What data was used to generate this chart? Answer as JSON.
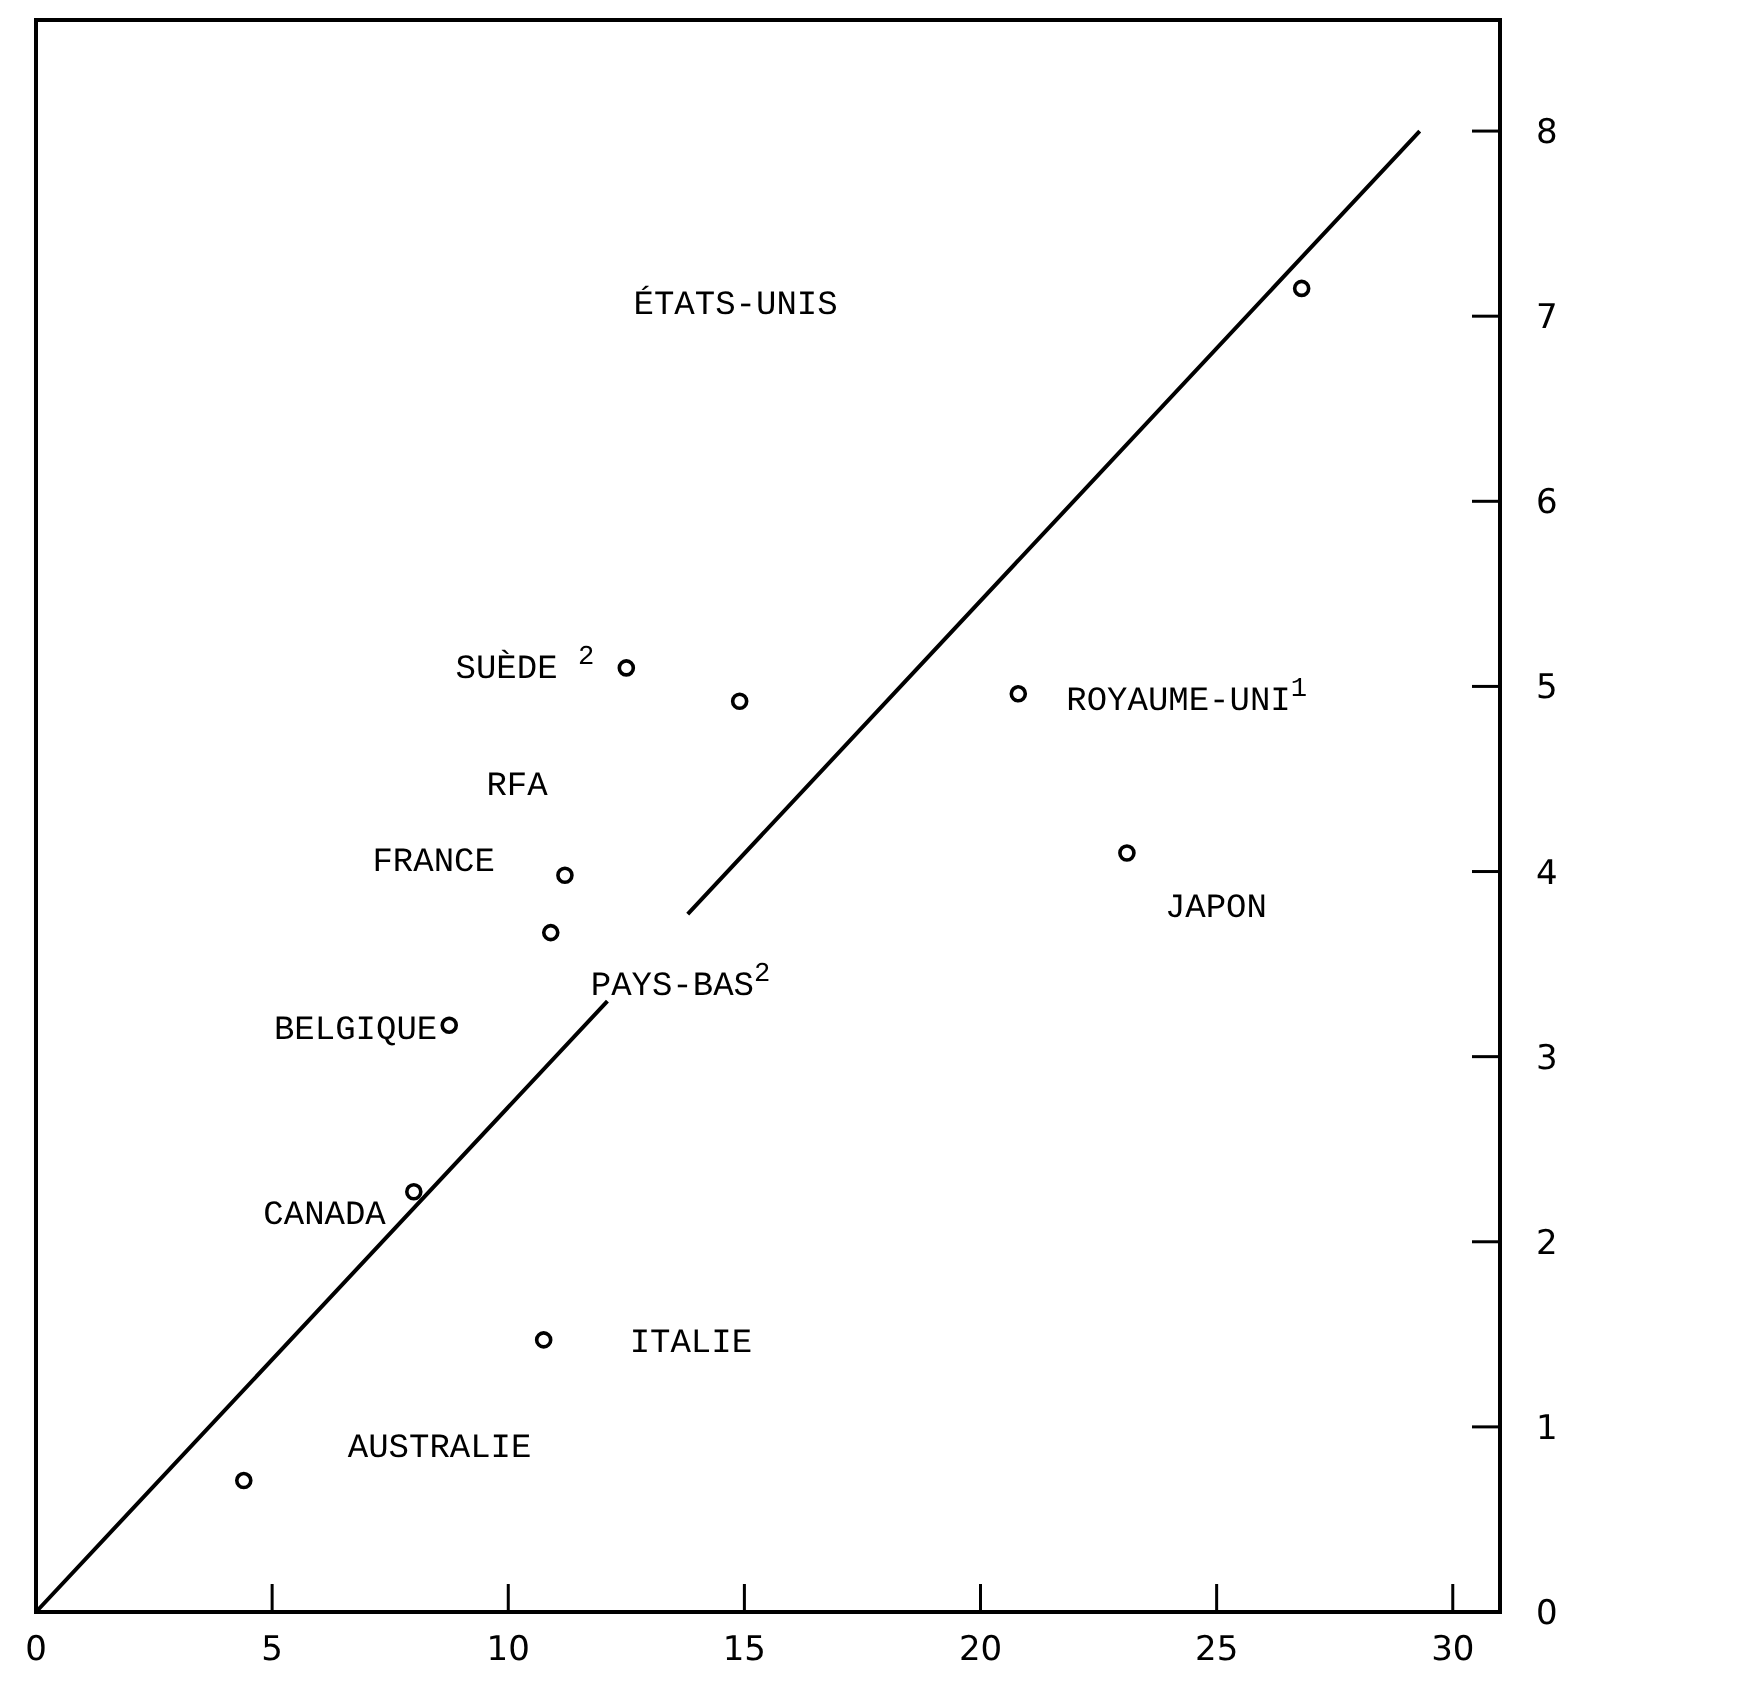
{
  "chart_data": {
    "type": "scatter",
    "xlim": [
      0,
      31
    ],
    "xticks": [
      0,
      5,
      10,
      15,
      20,
      25,
      30
    ],
    "ylim": [
      0,
      8.6
    ],
    "yticks": [
      0,
      1,
      2,
      3,
      4,
      5,
      6,
      7,
      8
    ],
    "marker": "circle",
    "series": [
      {
        "color": "#000000",
        "x": [
          4.4,
          8.0,
          10.75,
          8.75,
          10.9,
          11.2,
          14.9,
          12.5,
          23.1,
          20.8,
          26.8
        ],
        "values": [
          0.71,
          2.27,
          1.47,
          3.17,
          3.67,
          3.98,
          4.92,
          5.1,
          4.1,
          4.96,
          7.15
        ]
      },
      {
        "type": "line",
        "color": "#000000",
        "marker": "none",
        "x": [
          0,
          12.1,
          12.9,
          13.8,
          29.3
        ],
        "values": [
          0,
          3.3,
          null,
          3.77,
          8
        ]
      }
    ],
    "annotations": [
      "AUSTRALIE",
      "CANADA",
      "ITALIE",
      "BELGIQUE",
      "PAYS-BAS$^{2}$",
      "FRANCE",
      "RFA",
      "SUÈDE $^{2}$",
      "JAPON",
      "ROYAUME-UNI$^{1}$",
      "ÉTATS-UNIS"
    ]
  }
}
